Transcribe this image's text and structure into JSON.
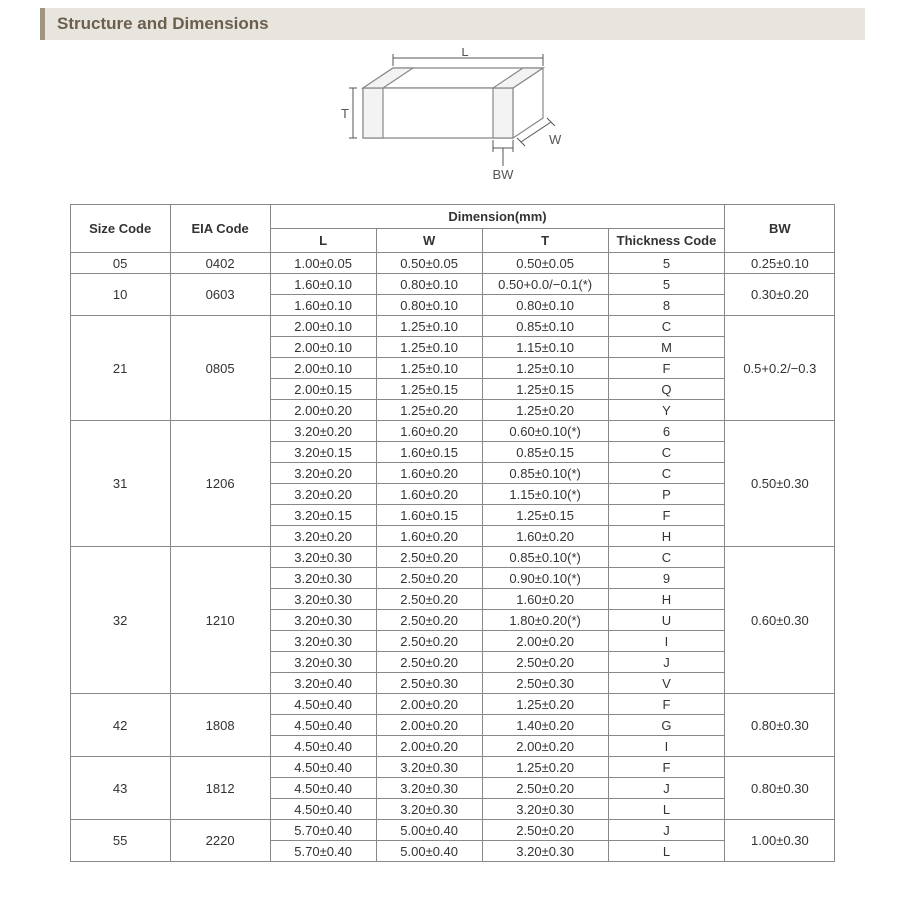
{
  "section_title": "Structure and Dimensions",
  "diagram": {
    "labels": {
      "L": "L",
      "W": "W",
      "T": "T",
      "BW": "BW"
    },
    "stroke": "#888888",
    "fill": "#ffffff",
    "label_color": "#555555",
    "label_fontsize": 13
  },
  "table": {
    "header": {
      "size_code": "Size Code",
      "eia_code": "EIA Code",
      "dimension_group": "Dimension(mm)",
      "L": "L",
      "W": "W",
      "T": "T",
      "thickness_code": "Thickness Code",
      "BW": "BW"
    },
    "groups": [
      {
        "size_code": "05",
        "eia_code": "0402",
        "bw": "0.25±0.10",
        "rows": [
          {
            "L": "1.00±0.05",
            "W": "0.50±0.05",
            "T": "0.50±0.05",
            "tc": "5"
          }
        ]
      },
      {
        "size_code": "10",
        "eia_code": "0603",
        "bw": "0.30±0.20",
        "rows": [
          {
            "L": "1.60±0.10",
            "W": "0.80±0.10",
            "T": "0.50+0.0/−0.1(*)",
            "tc": "5"
          },
          {
            "L": "1.60±0.10",
            "W": "0.80±0.10",
            "T": "0.80±0.10",
            "tc": "8"
          }
        ]
      },
      {
        "size_code": "21",
        "eia_code": "0805",
        "bw": "0.5+0.2/−0.3",
        "rows": [
          {
            "L": "2.00±0.10",
            "W": "1.25±0.10",
            "T": "0.85±0.10",
            "tc": "C"
          },
          {
            "L": "2.00±0.10",
            "W": "1.25±0.10",
            "T": "1.15±0.10",
            "tc": "M"
          },
          {
            "L": "2.00±0.10",
            "W": "1.25±0.10",
            "T": "1.25±0.10",
            "tc": "F"
          },
          {
            "L": "2.00±0.15",
            "W": "1.25±0.15",
            "T": "1.25±0.15",
            "tc": "Q"
          },
          {
            "L": "2.00±0.20",
            "W": "1.25±0.20",
            "T": "1.25±0.20",
            "tc": "Y"
          }
        ]
      },
      {
        "size_code": "31",
        "eia_code": "1206",
        "bw": "0.50±0.30",
        "rows": [
          {
            "L": "3.20±0.20",
            "W": "1.60±0.20",
            "T": "0.60±0.10(*)",
            "tc": "6"
          },
          {
            "L": "3.20±0.15",
            "W": "1.60±0.15",
            "T": "0.85±0.15",
            "tc": "C"
          },
          {
            "L": "3.20±0.20",
            "W": "1.60±0.20",
            "T": "0.85±0.10(*)",
            "tc": "C"
          },
          {
            "L": "3.20±0.20",
            "W": "1.60±0.20",
            "T": "1.15±0.10(*)",
            "tc": "P"
          },
          {
            "L": "3.20±0.15",
            "W": "1.60±0.15",
            "T": "1.25±0.15",
            "tc": "F"
          },
          {
            "L": "3.20±0.20",
            "W": "1.60±0.20",
            "T": "1.60±0.20",
            "tc": "H"
          }
        ]
      },
      {
        "size_code": "32",
        "eia_code": "1210",
        "bw": "0.60±0.30",
        "rows": [
          {
            "L": "3.20±0.30",
            "W": "2.50±0.20",
            "T": "0.85±0.10(*)",
            "tc": "C"
          },
          {
            "L": "3.20±0.30",
            "W": "2.50±0.20",
            "T": "0.90±0.10(*)",
            "tc": "9"
          },
          {
            "L": "3.20±0.30",
            "W": "2.50±0.20",
            "T": "1.60±0.20",
            "tc": "H"
          },
          {
            "L": "3.20±0.30",
            "W": "2.50±0.20",
            "T": "1.80±0.20(*)",
            "tc": "U"
          },
          {
            "L": "3.20±0.30",
            "W": "2.50±0.20",
            "T": "2.00±0.20",
            "tc": "I"
          },
          {
            "L": "3.20±0.30",
            "W": "2.50±0.20",
            "T": "2.50±0.20",
            "tc": "J"
          },
          {
            "L": "3.20±0.40",
            "W": "2.50±0.30",
            "T": "2.50±0.30",
            "tc": "V"
          }
        ]
      },
      {
        "size_code": "42",
        "eia_code": "1808",
        "bw": "0.80±0.30",
        "rows": [
          {
            "L": "4.50±0.40",
            "W": "2.00±0.20",
            "T": "1.25±0.20",
            "tc": "F"
          },
          {
            "L": "4.50±0.40",
            "W": "2.00±0.20",
            "T": "1.40±0.20",
            "tc": "G"
          },
          {
            "L": "4.50±0.40",
            "W": "2.00±0.20",
            "T": "2.00±0.20",
            "tc": "I"
          }
        ]
      },
      {
        "size_code": "43",
        "eia_code": "1812",
        "bw": "0.80±0.30",
        "rows": [
          {
            "L": "4.50±0.40",
            "W": "3.20±0.30",
            "T": "1.25±0.20",
            "tc": "F"
          },
          {
            "L": "4.50±0.40",
            "W": "3.20±0.30",
            "T": "2.50±0.20",
            "tc": "J"
          },
          {
            "L": "4.50±0.40",
            "W": "3.20±0.30",
            "T": "3.20±0.30",
            "tc": "L"
          }
        ]
      },
      {
        "size_code": "55",
        "eia_code": "2220",
        "bw": "1.00±0.30",
        "rows": [
          {
            "L": "5.70±0.40",
            "W": "5.00±0.40",
            "T": "2.50±0.20",
            "tc": "J"
          },
          {
            "L": "5.70±0.40",
            "W": "5.00±0.40",
            "T": "3.20±0.30",
            "tc": "L"
          }
        ]
      }
    ]
  },
  "colors": {
    "header_bg": "#e8e5df",
    "header_accent": "#a09482",
    "text": "#444444",
    "border": "#888888"
  }
}
